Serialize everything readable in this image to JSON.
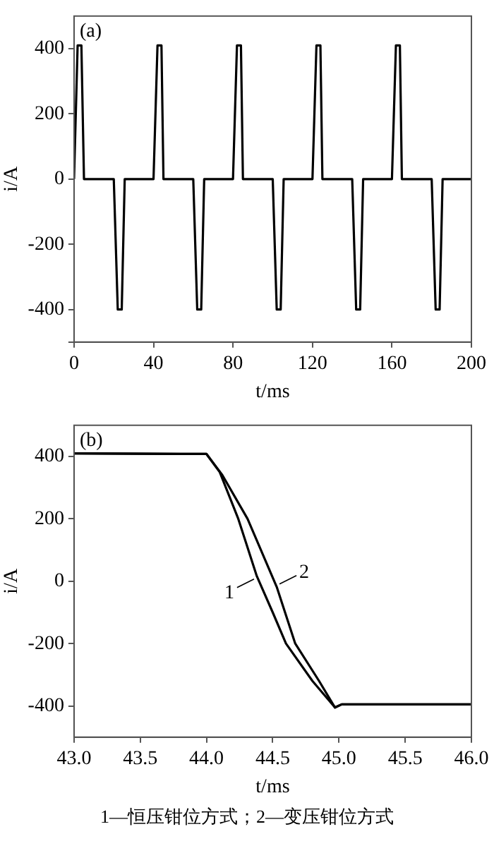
{
  "chart_data": [
    {
      "type": "line",
      "title": "(a)",
      "xlabel": "t/ms",
      "ylabel": "i/A",
      "xlim": [
        0,
        200
      ],
      "xticks": [
        0,
        40,
        80,
        120,
        160,
        200
      ],
      "ylim": [
        -500,
        500
      ],
      "yticks": [
        {
          "value": -500,
          "label": null
        },
        -400,
        -200,
        0,
        200,
        400
      ],
      "grid": false,
      "legend": false,
      "marker": "none",
      "line_style": "solid",
      "series": [
        {
          "color": "#000000",
          "x": [
            0,
            1.8,
            3.7,
            5,
            20,
            22,
            24,
            25.5,
            40,
            42,
            44,
            45,
            60,
            62,
            64,
            65.5,
            80,
            82,
            84,
            85,
            100,
            102,
            104,
            105.5,
            120,
            122,
            124,
            125,
            140,
            142,
            144,
            145.5,
            160,
            162,
            164,
            165,
            180,
            182,
            184,
            185.5,
            200
          ],
          "values": [
            0,
            410,
            410,
            0,
            0,
            -400,
            -400,
            0,
            0,
            410,
            410,
            0,
            0,
            -400,
            -400,
            0,
            0,
            410,
            410,
            0,
            0,
            -400,
            -400,
            0,
            0,
            410,
            410,
            0,
            0,
            -400,
            -400,
            0,
            0,
            410,
            410,
            0,
            0,
            -400,
            -400,
            0,
            0
          ]
        }
      ]
    },
    {
      "type": "line",
      "title": "(b)",
      "xlabel": "t/ms",
      "ylabel": "i/A",
      "xlim": [
        43,
        46
      ],
      "xticks": [
        {
          "value": 43,
          "label": "43.0"
        },
        {
          "value": 43.5,
          "label": "43.5"
        },
        {
          "value": 44,
          "label": "44.0"
        },
        {
          "value": 44.5,
          "label": "44.5"
        },
        {
          "value": 45,
          "label": "45.0"
        },
        {
          "value": 45.5,
          "label": "45.5"
        },
        {
          "value": 46,
          "label": "46.0"
        }
      ],
      "ylim": [
        -500,
        500
      ],
      "yticks": [
        -400,
        -200,
        0,
        200,
        400
      ],
      "grid": false,
      "legend": false,
      "marker": "none",
      "line_style": "solid",
      "series": [
        {
          "color": "#000000",
          "x": [
            43,
            44,
            44.1,
            44.24,
            44.38,
            44.5,
            44.6,
            44.8,
            44.97,
            45.02,
            46
          ],
          "values": [
            410,
            408,
            350,
            200,
            16,
            -100,
            -200,
            -320,
            -405,
            -395,
            -395
          ]
        },
        {
          "color": "#000000",
          "x": [
            43,
            44,
            44.12,
            44.31,
            44.53,
            44.67,
            44.85,
            44.97,
            45.02,
            46
          ],
          "values": [
            410,
            408,
            340,
            200,
            -18,
            -200,
            -320,
            -405,
            -395,
            -395
          ]
        }
      ],
      "annotations": [
        {
          "text": "1",
          "x": 44.38,
          "y": 16
        },
        {
          "text": "2",
          "x": 44.53,
          "y": -18
        },
        "1—恒压钳位方式；2—变压钳位方式"
      ]
    }
  ]
}
